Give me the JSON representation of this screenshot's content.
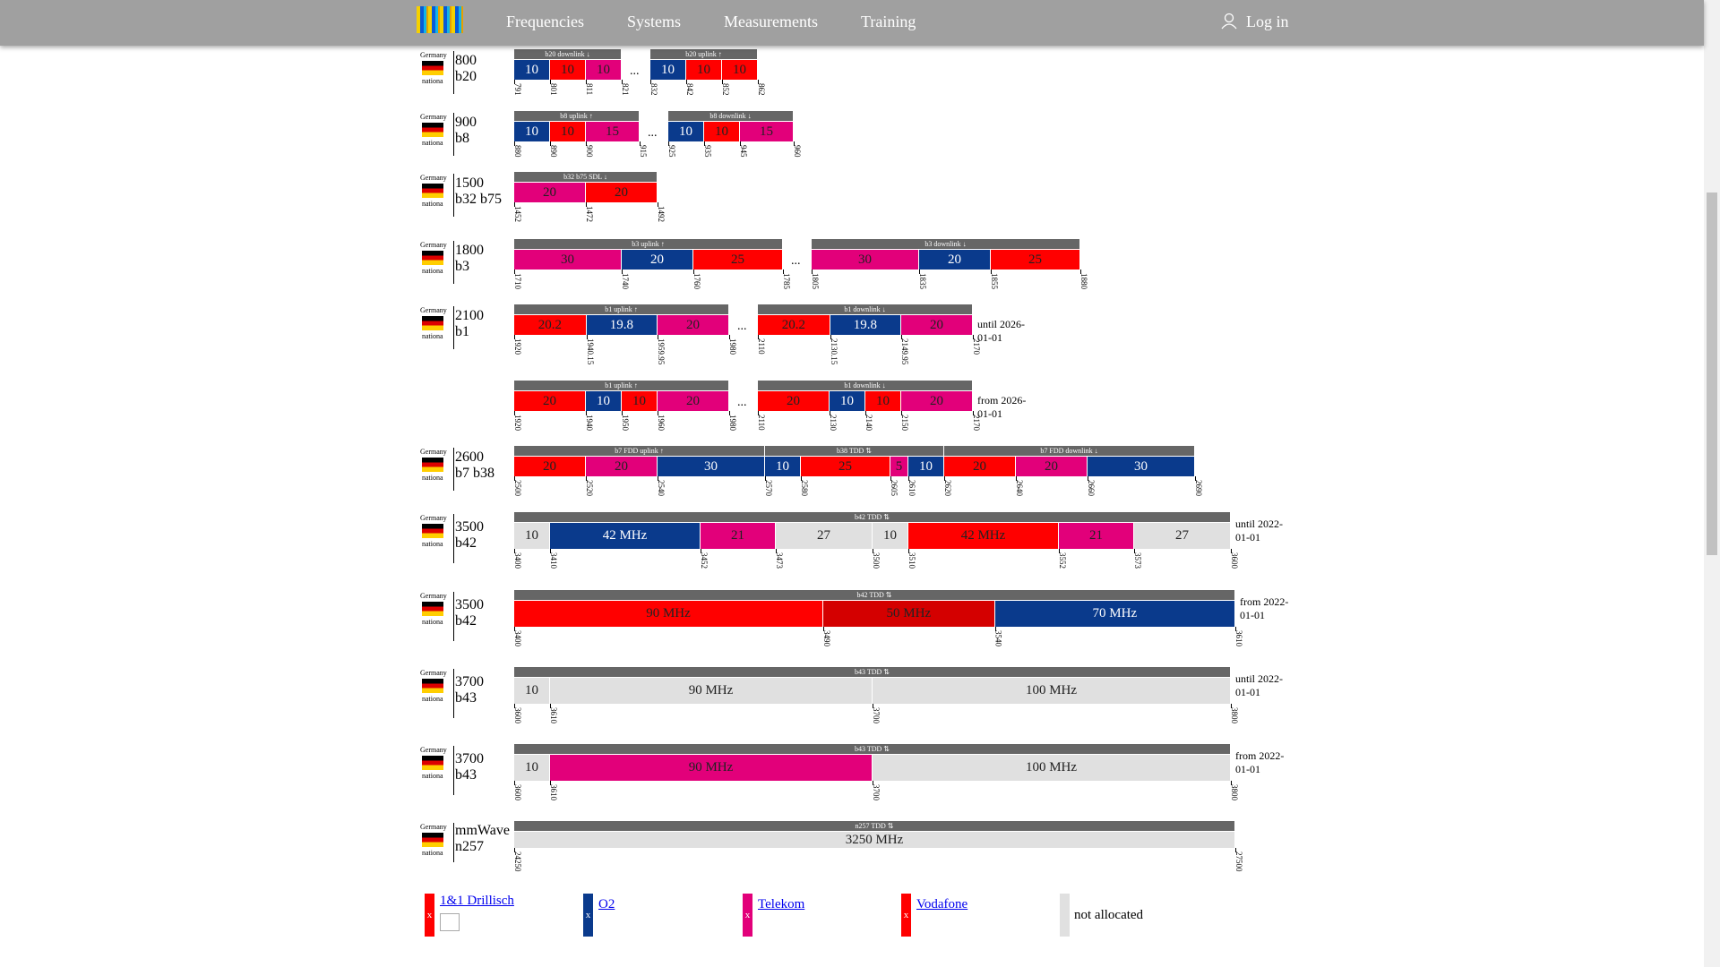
{
  "nav": {
    "items": [
      "Frequencies",
      "Systems",
      "Measurements",
      "Training"
    ],
    "login": "Log in"
  },
  "rows": [
    {
      "country": "Germany",
      "scope": "nationa",
      "freq": "800",
      "band": "b20",
      "separator": "...",
      "groups": [
        {
          "label": "b20 downlink ↓",
          "segments": [
            {
              "value": 10,
              "color": "#0a3a8c"
            },
            {
              "value": 10,
              "color": "#ff0000"
            },
            {
              "value": 10,
              "color": "#e2007a"
            }
          ],
          "ticks": [
            791,
            801,
            811,
            821
          ]
        },
        {
          "label": "b20 uplink ↑",
          "segments": [
            {
              "value": 10,
              "color": "#0a3a8c"
            },
            {
              "value": 10,
              "color": "#ff0000"
            },
            {
              "value": 10,
              "color": "#ff0000"
            }
          ],
          "ticks": [
            832,
            842,
            852,
            862
          ]
        }
      ]
    },
    {
      "country": "Germany",
      "scope": "nationa",
      "freq": "900",
      "band": "b8",
      "separator": "...",
      "groups": [
        {
          "label": "b8 uplink ↑",
          "segments": [
            {
              "value": 10,
              "color": "#0a3a8c"
            },
            {
              "value": 10,
              "color": "#ff0000"
            },
            {
              "value": 15,
              "color": "#e2007a"
            }
          ],
          "ticks": [
            880,
            890,
            900,
            915
          ]
        },
        {
          "label": "b8 downlink ↓",
          "segments": [
            {
              "value": 10,
              "color": "#0a3a8c"
            },
            {
              "value": 10,
              "color": "#ff0000"
            },
            {
              "value": 15,
              "color": "#e2007a"
            }
          ],
          "ticks": [
            925,
            935,
            945,
            960
          ]
        }
      ]
    },
    {
      "country": "Germany",
      "scope": "nationa",
      "freq": "1500",
      "band": "b32 b75",
      "groups": [
        {
          "label": "b32 b75 SDL ↓",
          "segments": [
            {
              "value": 20,
              "color": "#e2007a"
            },
            {
              "value": 20,
              "color": "#ff0000"
            }
          ],
          "ticks": [
            1452,
            1472,
            1492
          ]
        }
      ]
    },
    {
      "country": "Germany",
      "scope": "nationa",
      "freq": "1800",
      "band": "b3",
      "separator": "...",
      "groups": [
        {
          "label": "b3 uplink ↑",
          "segments": [
            {
              "value": 30,
              "color": "#e2007a"
            },
            {
              "value": 20,
              "color": "#0a3a8c"
            },
            {
              "value": 25,
              "color": "#ff0000"
            }
          ],
          "ticks": [
            1710,
            1740,
            1760,
            1785
          ]
        },
        {
          "label": "b3 downlink ↓",
          "segments": [
            {
              "value": 30,
              "color": "#e2007a"
            },
            {
              "value": 20,
              "color": "#0a3a8c"
            },
            {
              "value": 25,
              "color": "#ff0000"
            }
          ],
          "ticks": [
            1805,
            1835,
            1855,
            1880
          ]
        }
      ]
    },
    {
      "country": "Germany",
      "scope": "nationa",
      "freq": "2100",
      "band": "b1",
      "separator": "...",
      "note": "until 2026-01-01",
      "groups": [
        {
          "label": "b1 uplink ↑",
          "segments": [
            {
              "value": 20.2,
              "color": "#ff0000"
            },
            {
              "value": 19.8,
              "color": "#0a3a8c"
            },
            {
              "value": 20,
              "color": "#e2007a"
            }
          ],
          "ticks": [
            1920,
            1940.15,
            1959.95,
            1980
          ]
        },
        {
          "label": "b1 downlink ↓",
          "segments": [
            {
              "value": 20.2,
              "color": "#ff0000"
            },
            {
              "value": 19.8,
              "color": "#0a3a8c"
            },
            {
              "value": 20,
              "color": "#e2007a"
            }
          ],
          "ticks": [
            2110,
            2130.15,
            2149.95,
            2170
          ]
        }
      ]
    },
    {
      "separator": "...",
      "note": "from 2026-01-01",
      "groups": [
        {
          "label": "b1 uplink ↑",
          "segments": [
            {
              "value": 20,
              "color": "#ff0000"
            },
            {
              "value": 10,
              "color": "#0a3a8c"
            },
            {
              "value": 10,
              "color": "#ff0000"
            },
            {
              "value": 20,
              "color": "#e2007a"
            }
          ],
          "ticks": [
            1920,
            1940,
            1950,
            1960,
            1980
          ]
        },
        {
          "label": "b1 downlink ↓",
          "segments": [
            {
              "value": 20,
              "color": "#ff0000"
            },
            {
              "value": 10,
              "color": "#0a3a8c"
            },
            {
              "value": 10,
              "color": "#ff0000"
            },
            {
              "value": 20,
              "color": "#e2007a"
            }
          ],
          "ticks": [
            2110,
            2130,
            2140,
            2150,
            2170
          ]
        }
      ]
    },
    {
      "country": "Germany",
      "scope": "nationa",
      "freq": "2600",
      "band": "b7 b38",
      "groups": [
        {
          "label": "b7 FDD uplink ↑",
          "segments": [
            {
              "value": 20,
              "color": "#ff0000"
            },
            {
              "value": 20,
              "color": "#e2007a"
            },
            {
              "value": 30,
              "color": "#0a3a8c"
            }
          ],
          "ticks": [
            2500,
            2520,
            2540
          ]
        },
        {
          "label": "b38 TDD ⇅",
          "segments": [
            {
              "value": 10,
              "color": "#0a3a8c"
            },
            {
              "value": 25,
              "color": "#ff0000"
            },
            {
              "value": 5,
              "color": "#e2007a"
            },
            {
              "value": 10,
              "color": "#0a3a8c"
            }
          ],
          "ticks": [
            2570,
            2580,
            2605,
            2610
          ]
        },
        {
          "label": "b7 FDD downlink ↓",
          "segments": [
            {
              "value": 20,
              "color": "#ff0000"
            },
            {
              "value": 20,
              "color": "#e2007a"
            },
            {
              "value": 30,
              "color": "#0a3a8c"
            }
          ],
          "ticks": [
            2620,
            2640,
            2660,
            2690
          ]
        }
      ]
    },
    {
      "country": "Germany",
      "scope": "nationa",
      "freq": "3500",
      "band": "b42",
      "note": "until 2022-01-01",
      "groups": [
        {
          "label": "b42 TDD ⇅",
          "segments": [
            {
              "value": 10,
              "color": "#e0e0e0"
            },
            {
              "value": 42,
              "label": "42 MHz",
              "color": "#0a3a8c"
            },
            {
              "value": 21,
              "color": "#e2007a"
            },
            {
              "value": 27,
              "color": "#e0e0e0"
            },
            {
              "value": 10,
              "color": "#e0e0e0"
            },
            {
              "value": 42,
              "label": "42 MHz",
              "color": "#ff0000"
            },
            {
              "value": 21,
              "color": "#e2007a"
            },
            {
              "value": 27,
              "color": "#e0e0e0"
            }
          ],
          "ticks": [
            3400,
            3410,
            3452,
            3473,
            3500,
            3510,
            3552,
            3573,
            3600
          ]
        }
      ]
    },
    {
      "country": "Germany",
      "scope": "nationa",
      "freq": "3500",
      "band": "b42",
      "note": "from 2022-01-01",
      "groups": [
        {
          "label": "b42 TDD ⇅",
          "segments": [
            {
              "value": 90,
              "label": "90 MHz",
              "color": "#ff0000"
            },
            {
              "value": 50,
              "label": "50 MHz",
              "color": "#d40000"
            },
            {
              "value": 70,
              "label": "70 MHz",
              "color": "#0a3a8c"
            }
          ],
          "ticks": [
            3400,
            3490,
            3540,
            3610
          ]
        }
      ]
    },
    {
      "country": "Germany",
      "scope": "nationa",
      "freq": "3700",
      "band": "b43",
      "note": "until 2022-01-01",
      "groups": [
        {
          "label": "b43 TDD ⇅",
          "segments": [
            {
              "value": 10,
              "color": "#e0e0e0"
            },
            {
              "value": 90,
              "label": "90 MHz",
              "color": "#e0e0e0"
            },
            {
              "value": 100,
              "label": "100 MHz",
              "color": "#e0e0e0"
            }
          ],
          "ticks": [
            3600,
            3610,
            3700,
            3800
          ]
        }
      ]
    },
    {
      "country": "Germany",
      "scope": "nationa",
      "freq": "3700",
      "band": "b43",
      "note": "from 2022-01-01",
      "groups": [
        {
          "label": "b43 TDD ⇅",
          "segments": [
            {
              "value": 10,
              "color": "#e0e0e0"
            },
            {
              "value": 90,
              "label": "90 MHz",
              "color": "#e2007a"
            },
            {
              "value": 100,
              "label": "100 MHz",
              "color": "#e0e0e0"
            }
          ],
          "ticks": [
            3600,
            3610,
            3700,
            3800
          ]
        }
      ]
    },
    {
      "country": "Germany",
      "scope": "nationa",
      "freq": "mmWave",
      "band": "n257",
      "groups": [
        {
          "label": "n257 TDD ⇅",
          "segments": [
            {
              "value": 3250,
              "label": "3250 MHz",
              "color": "#e0e0e0"
            }
          ],
          "ticks": [
            24250,
            27500
          ]
        }
      ]
    }
  ],
  "legend": [
    {
      "name": "1&1 Drillisch",
      "color": "#ff0000",
      "mark": "x",
      "link": true
    },
    {
      "name": "O2",
      "color": "#0a3a8c",
      "mark": "x",
      "link": true
    },
    {
      "name": "Telekom",
      "color": "#e2007a",
      "mark": "x",
      "link": true
    },
    {
      "name": "Vodafone",
      "color": "#ff0000",
      "mark": "x",
      "link": true
    },
    {
      "name": "not allocated",
      "color": "#e0e0e0",
      "link": false
    }
  ]
}
